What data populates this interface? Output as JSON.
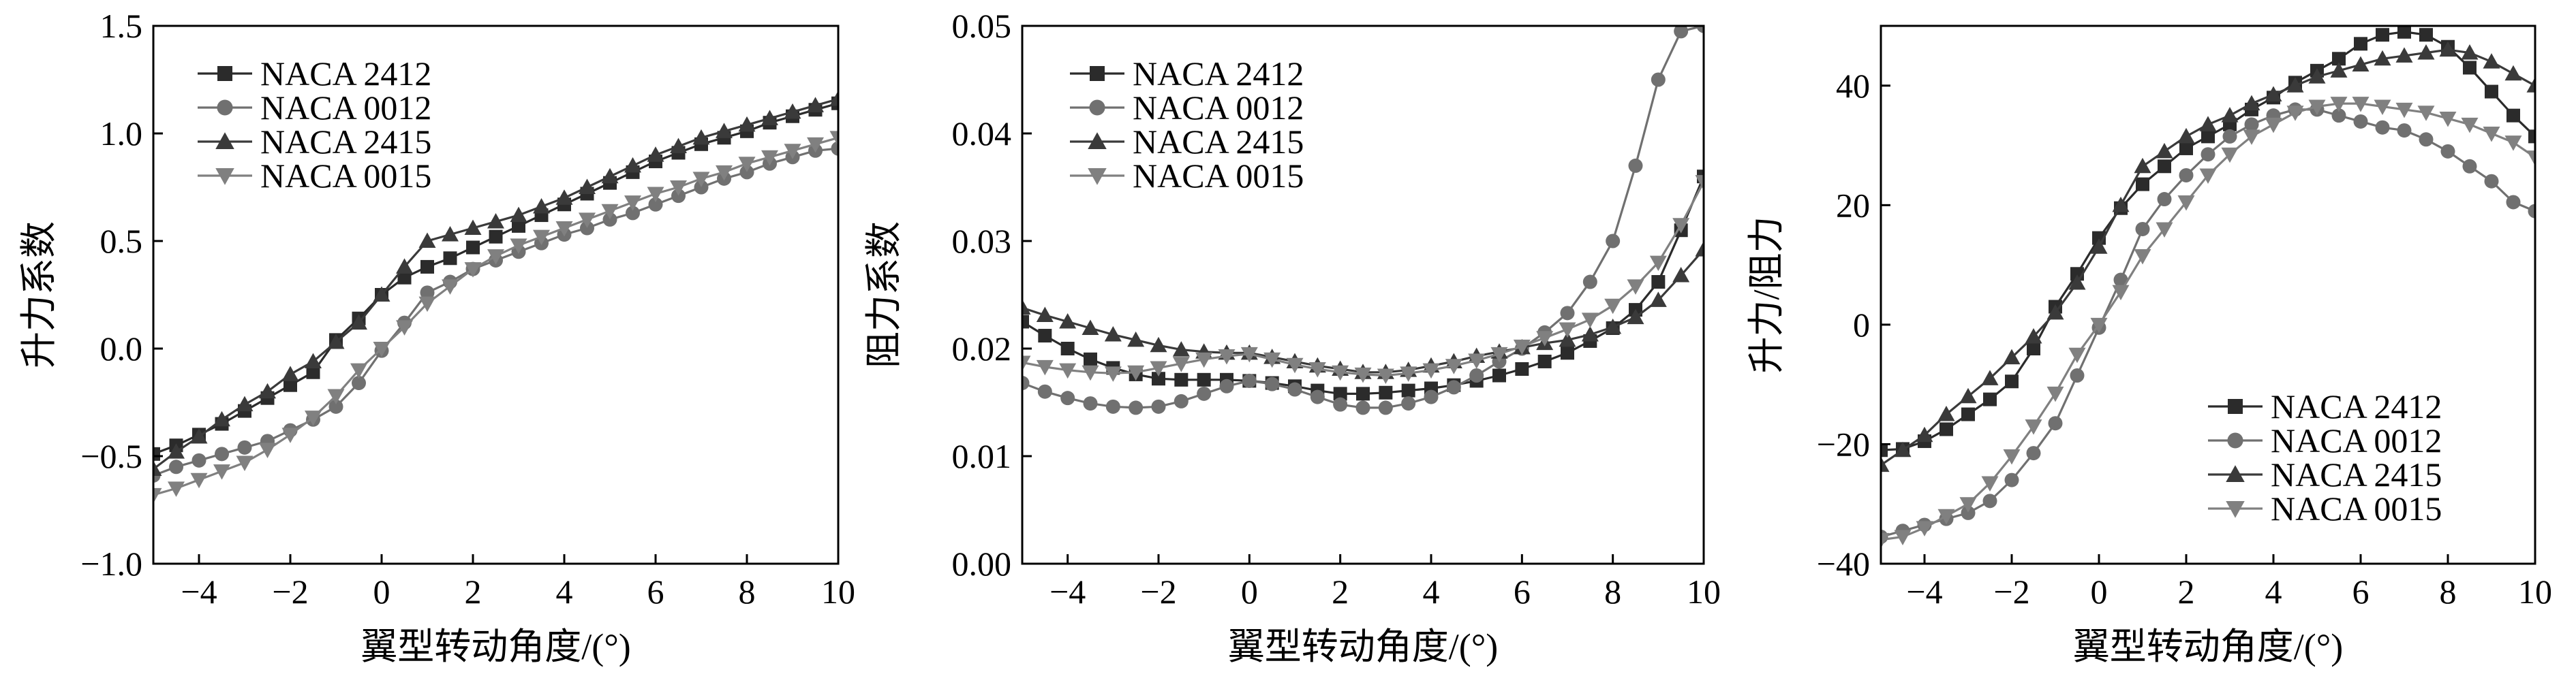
{
  "chart_data": [
    {
      "type": "line",
      "xlabel": "翼型转动角度/(°)",
      "ylabel": "升力系数",
      "xlim": [
        -5,
        10
      ],
      "ylim": [
        -1.0,
        1.5
      ],
      "xticks": [
        -4,
        -2,
        0,
        2,
        4,
        6,
        8,
        10
      ],
      "xtick_labels": [
        "−4",
        "−2",
        "0",
        "2",
        "4",
        "6",
        "8",
        "10"
      ],
      "yticks": [
        -1.0,
        -0.5,
        0.0,
        0.5,
        1.0,
        1.5
      ],
      "ytick_labels": [
        "−1.0",
        "−0.5",
        "0.0",
        "0.5",
        "1.0",
        "1.5"
      ],
      "legend_position": "top-left",
      "series": [
        {
          "name": "NACA 2412",
          "marker": "square",
          "color": "#2b2b2b",
          "x": [
            -5,
            -4.5,
            -4,
            -3.5,
            -3,
            -2.5,
            -2,
            -1.5,
            -1,
            -0.5,
            0,
            0.5,
            1,
            1.5,
            2,
            2.5,
            3,
            3.5,
            4,
            4.5,
            5,
            5.5,
            6,
            6.5,
            7,
            7.5,
            8,
            8.5,
            9,
            9.5,
            10
          ],
          "values": [
            -0.49,
            -0.45,
            -0.4,
            -0.35,
            -0.29,
            -0.23,
            -0.17,
            -0.11,
            0.04,
            0.14,
            0.25,
            0.33,
            0.38,
            0.42,
            0.47,
            0.52,
            0.57,
            0.62,
            0.67,
            0.72,
            0.77,
            0.82,
            0.87,
            0.91,
            0.95,
            0.98,
            1.01,
            1.05,
            1.08,
            1.11,
            1.14
          ]
        },
        {
          "name": "NACA 0012",
          "marker": "circle",
          "color": "#707070",
          "x": [
            -5,
            -4.5,
            -4,
            -3.5,
            -3,
            -2.5,
            -2,
            -1.5,
            -1,
            -0.5,
            0,
            0.5,
            1,
            1.5,
            2,
            2.5,
            3,
            3.5,
            4,
            4.5,
            5,
            5.5,
            6,
            6.5,
            7,
            7.5,
            8,
            8.5,
            9,
            9.5,
            10
          ],
          "values": [
            -0.59,
            -0.55,
            -0.52,
            -0.49,
            -0.46,
            -0.43,
            -0.38,
            -0.33,
            -0.27,
            -0.16,
            -0.01,
            0.12,
            0.26,
            0.31,
            0.37,
            0.41,
            0.45,
            0.49,
            0.53,
            0.56,
            0.6,
            0.63,
            0.67,
            0.71,
            0.75,
            0.79,
            0.82,
            0.86,
            0.89,
            0.92,
            0.93
          ]
        },
        {
          "name": "NACA 2415",
          "marker": "triangle-up",
          "color": "#3a3a3a",
          "x": [
            -5,
            -4.5,
            -4,
            -3.5,
            -3,
            -2.5,
            -2,
            -1.5,
            -1,
            -0.5,
            0,
            0.5,
            1,
            1.5,
            2,
            2.5,
            3,
            3.5,
            4,
            4.5,
            5,
            5.5,
            6,
            6.5,
            7,
            7.5,
            8,
            8.5,
            9,
            9.5,
            10
          ],
          "values": [
            -0.56,
            -0.48,
            -0.41,
            -0.33,
            -0.26,
            -0.2,
            -0.12,
            -0.06,
            0.03,
            0.12,
            0.25,
            0.38,
            0.5,
            0.53,
            0.56,
            0.59,
            0.62,
            0.66,
            0.7,
            0.75,
            0.8,
            0.85,
            0.9,
            0.94,
            0.98,
            1.01,
            1.04,
            1.07,
            1.1,
            1.13,
            1.16
          ]
        },
        {
          "name": "NACA 0015",
          "marker": "triangle-down",
          "color": "#808080",
          "x": [
            -5,
            -4.5,
            -4,
            -3.5,
            -3,
            -2.5,
            -2,
            -1.5,
            -1,
            -0.5,
            0,
            0.5,
            1,
            1.5,
            2,
            2.5,
            3,
            3.5,
            4,
            4.5,
            5,
            5.5,
            6,
            6.5,
            7,
            7.5,
            8,
            8.5,
            9,
            9.5,
            10
          ],
          "values": [
            -0.68,
            -0.65,
            -0.61,
            -0.57,
            -0.53,
            -0.47,
            -0.4,
            -0.32,
            -0.22,
            -0.1,
            0.0,
            0.1,
            0.21,
            0.29,
            0.37,
            0.43,
            0.48,
            0.52,
            0.56,
            0.6,
            0.64,
            0.68,
            0.72,
            0.75,
            0.79,
            0.82,
            0.86,
            0.89,
            0.92,
            0.95,
            0.98
          ]
        }
      ]
    },
    {
      "type": "line",
      "xlabel": "翼型转动角度/(°)",
      "ylabel": "阻力系数",
      "xlim": [
        -5,
        10
      ],
      "ylim": [
        0.0,
        0.05
      ],
      "xticks": [
        -4,
        -2,
        0,
        2,
        4,
        6,
        8,
        10
      ],
      "xtick_labels": [
        "−4",
        "−2",
        "0",
        "2",
        "4",
        "6",
        "8",
        "10"
      ],
      "yticks": [
        0.0,
        0.01,
        0.02,
        0.03,
        0.04,
        0.05
      ],
      "ytick_labels": [
        "0.00",
        "0.01",
        "0.02",
        "0.03",
        "0.04",
        "0.05"
      ],
      "legend_position": "top-left",
      "series": [
        {
          "name": "NACA 2412",
          "marker": "square",
          "color": "#2b2b2b",
          "x": [
            -5,
            -4.5,
            -4,
            -3.5,
            -3,
            -2.5,
            -2,
            -1.5,
            -1,
            -0.5,
            0,
            0.5,
            1,
            1.5,
            2,
            2.5,
            3,
            3.5,
            4,
            4.5,
            5,
            5.5,
            6,
            6.5,
            7,
            7.5,
            8,
            8.5,
            9,
            9.5,
            10
          ],
          "values": [
            0.0225,
            0.0212,
            0.02,
            0.019,
            0.0182,
            0.0176,
            0.0172,
            0.0171,
            0.0171,
            0.0171,
            0.017,
            0.0168,
            0.0165,
            0.0161,
            0.0158,
            0.0158,
            0.0159,
            0.0161,
            0.0163,
            0.0166,
            0.017,
            0.0175,
            0.0181,
            0.0188,
            0.0196,
            0.0207,
            0.0219,
            0.0236,
            0.0262,
            0.031,
            0.036
          ]
        },
        {
          "name": "NACA 0012",
          "marker": "circle",
          "color": "#707070",
          "x": [
            -5,
            -4.5,
            -4,
            -3.5,
            -3,
            -2.5,
            -2,
            -1.5,
            -1,
            -0.5,
            0,
            0.5,
            1,
            1.5,
            2,
            2.5,
            3,
            3.5,
            4,
            4.5,
            5,
            5.5,
            6,
            6.5,
            7,
            7.5,
            8,
            8.5,
            9,
            9.5,
            10
          ],
          "values": [
            0.0168,
            0.016,
            0.0154,
            0.0149,
            0.0146,
            0.0145,
            0.0146,
            0.0151,
            0.0158,
            0.0165,
            0.017,
            0.0167,
            0.0162,
            0.0155,
            0.0148,
            0.0145,
            0.0145,
            0.0149,
            0.0155,
            0.0164,
            0.0175,
            0.0188,
            0.02,
            0.0215,
            0.0233,
            0.0262,
            0.03,
            0.037,
            0.045,
            0.0495,
            0.05
          ]
        },
        {
          "name": "NACA 2415",
          "marker": "triangle-up",
          "color": "#3a3a3a",
          "x": [
            -5,
            -4.5,
            -4,
            -3.5,
            -3,
            -2.5,
            -2,
            -1.5,
            -1,
            -0.5,
            0,
            0.5,
            1,
            1.5,
            2,
            2.5,
            3,
            3.5,
            4,
            4.5,
            5,
            5.5,
            6,
            6.5,
            7,
            7.5,
            8,
            8.5,
            9,
            9.5,
            10
          ],
          "values": [
            0.0238,
            0.0231,
            0.0225,
            0.0219,
            0.0213,
            0.0208,
            0.0203,
            0.0199,
            0.0197,
            0.0196,
            0.0196,
            0.0192,
            0.0188,
            0.0184,
            0.0181,
            0.0178,
            0.0178,
            0.018,
            0.0184,
            0.0188,
            0.0193,
            0.0197,
            0.0201,
            0.0205,
            0.0208,
            0.0213,
            0.022,
            0.0229,
            0.0245,
            0.0268,
            0.0292
          ]
        },
        {
          "name": "NACA 0015",
          "marker": "triangle-down",
          "color": "#808080",
          "x": [
            -5,
            -4.5,
            -4,
            -3.5,
            -3,
            -2.5,
            -2,
            -1.5,
            -1,
            -0.5,
            0,
            0.5,
            1,
            1.5,
            2,
            2.5,
            3,
            3.5,
            4,
            4.5,
            5,
            5.5,
            6,
            6.5,
            7,
            7.5,
            8,
            8.5,
            9,
            9.5,
            10
          ],
          "values": [
            0.0187,
            0.0183,
            0.018,
            0.0178,
            0.0177,
            0.0178,
            0.0182,
            0.0186,
            0.019,
            0.0193,
            0.0195,
            0.019,
            0.0185,
            0.0181,
            0.0178,
            0.0176,
            0.0175,
            0.0177,
            0.018,
            0.0184,
            0.0189,
            0.0195,
            0.0202,
            0.021,
            0.0218,
            0.0227,
            0.024,
            0.0258,
            0.028,
            0.0315,
            0.0355
          ]
        }
      ]
    },
    {
      "type": "line",
      "xlabel": "翼型转动角度/(°)",
      "ylabel": "升力/阻力",
      "xlim": [
        -5,
        10
      ],
      "ylim": [
        -40,
        50
      ],
      "xticks": [
        -4,
        -2,
        0,
        2,
        4,
        6,
        8,
        10
      ],
      "xtick_labels": [
        "−4",
        "−2",
        "0",
        "2",
        "4",
        "6",
        "8",
        "10"
      ],
      "yticks": [
        -40,
        -20,
        0,
        20,
        40
      ],
      "ytick_labels": [
        "−40",
        "−20",
        "0",
        "20",
        "40"
      ],
      "legend_position": "bottom-right",
      "series": [
        {
          "name": "NACA 2412",
          "marker": "square",
          "color": "#2b2b2b",
          "x": [
            -5,
            -4.5,
            -4,
            -3.5,
            -3,
            -2.5,
            -2,
            -1.5,
            -1,
            -0.5,
            0,
            0.5,
            1,
            1.5,
            2,
            2.5,
            3,
            3.5,
            4,
            4.5,
            5,
            5.5,
            6,
            6.5,
            7,
            7.5,
            8,
            8.5,
            9,
            9.5,
            10
          ],
          "values": [
            -21.0,
            -20.8,
            -19.5,
            -17.5,
            -15.0,
            -12.5,
            -9.5,
            -4.0,
            3.0,
            8.5,
            14.5,
            19.5,
            23.5,
            26.5,
            29.5,
            31.5,
            33.5,
            36.0,
            38.0,
            40.5,
            42.5,
            44.5,
            47.0,
            48.5,
            49.0,
            48.5,
            46.5,
            43.0,
            39.0,
            35.0,
            31.5
          ]
        },
        {
          "name": "NACA 0012",
          "marker": "circle",
          "color": "#707070",
          "x": [
            -5,
            -4.5,
            -4,
            -3.5,
            -3,
            -2.5,
            -2,
            -1.5,
            -1,
            -0.5,
            0,
            0.5,
            1,
            1.5,
            2,
            2.5,
            3,
            3.5,
            4,
            4.5,
            5,
            5.5,
            6,
            6.5,
            7,
            7.5,
            8,
            8.5,
            9,
            9.5,
            10
          ],
          "values": [
            -35.5,
            -34.5,
            -33.5,
            -32.5,
            -31.5,
            -29.5,
            -26.0,
            -21.5,
            -16.5,
            -8.5,
            -0.5,
            7.5,
            16.0,
            21.0,
            25.0,
            28.5,
            31.5,
            33.5,
            35.0,
            36.0,
            36.0,
            35.0,
            34.0,
            33.0,
            32.5,
            31.0,
            29.0,
            26.5,
            24.0,
            20.5,
            19.0
          ]
        },
        {
          "name": "NACA 2415",
          "marker": "triangle-up",
          "color": "#3a3a3a",
          "x": [
            -5,
            -4.5,
            -4,
            -3.5,
            -3,
            -2.5,
            -2,
            -1.5,
            -1,
            -0.5,
            0,
            0.5,
            1,
            1.5,
            2,
            2.5,
            3,
            3.5,
            4,
            4.5,
            5,
            5.5,
            6,
            6.5,
            7,
            7.5,
            8,
            8.5,
            9,
            9.5,
            10
          ],
          "values": [
            -23.5,
            -21.0,
            -18.5,
            -15.0,
            -12.0,
            -9.0,
            -5.5,
            -2.0,
            2.0,
            7.0,
            13.0,
            20.0,
            26.5,
            29.0,
            31.5,
            33.5,
            35.0,
            37.0,
            38.5,
            40.0,
            41.5,
            42.5,
            43.5,
            44.5,
            45.0,
            45.5,
            46.0,
            45.5,
            44.0,
            42.0,
            40.0
          ]
        },
        {
          "name": "NACA 0015",
          "marker": "triangle-down",
          "color": "#808080",
          "x": [
            -5,
            -4.5,
            -4,
            -3.5,
            -3,
            -2.5,
            -2,
            -1.5,
            -1,
            -0.5,
            0,
            0.5,
            1,
            1.5,
            2,
            2.5,
            3,
            3.5,
            4,
            4.5,
            5,
            5.5,
            6,
            6.5,
            7,
            7.5,
            8,
            8.5,
            9,
            9.5,
            10
          ],
          "values": [
            -36.0,
            -35.5,
            -34.0,
            -32.0,
            -30.0,
            -26.5,
            -22.0,
            -17.0,
            -11.5,
            -5.0,
            0.0,
            5.5,
            11.5,
            16.0,
            20.5,
            25.0,
            28.5,
            31.5,
            33.5,
            35.5,
            36.5,
            37.0,
            37.0,
            36.5,
            36.0,
            35.5,
            34.5,
            33.5,
            32.0,
            30.5,
            28.0
          ]
        }
      ]
    }
  ]
}
